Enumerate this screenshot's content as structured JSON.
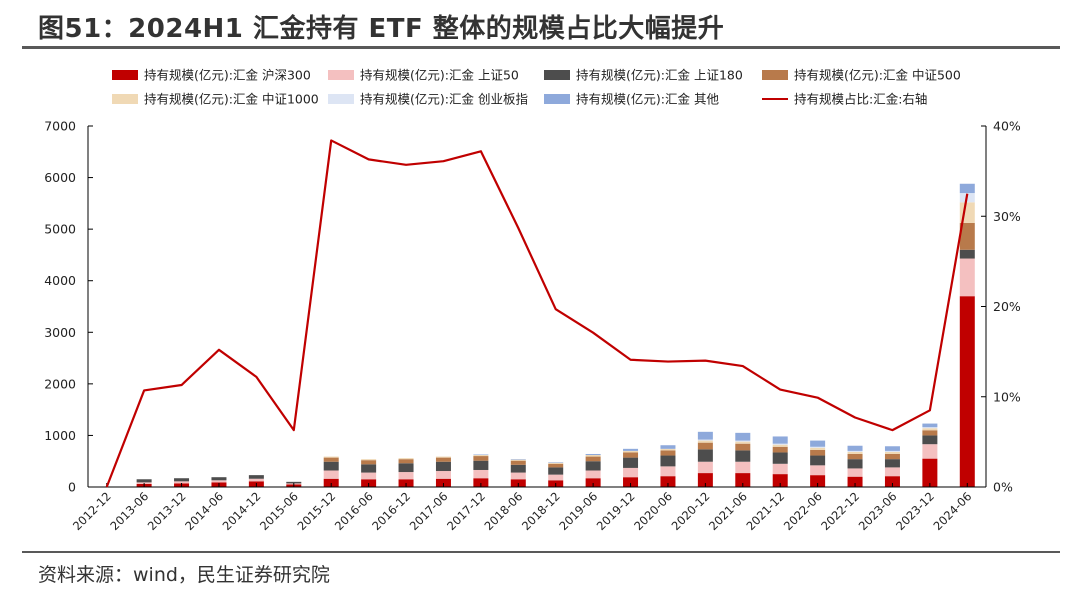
{
  "title": "图51：2024H1 汇金持有 ETF 整体的规模占比大幅提升",
  "source": "资料来源：wind，民生证券研究院",
  "chart_data": {
    "type": "bar",
    "stacked": true,
    "categories": [
      "2012-12",
      "2013-06",
      "2013-12",
      "2014-06",
      "2014-12",
      "2015-06",
      "2015-12",
      "2016-06",
      "2016-12",
      "2017-06",
      "2017-12",
      "2018-06",
      "2018-12",
      "2019-06",
      "2019-12",
      "2020-06",
      "2020-12",
      "2021-06",
      "2021-12",
      "2022-06",
      "2022-12",
      "2023-06",
      "2023-12",
      "2024-06"
    ],
    "series": [
      {
        "name": "持有规模(亿元):汇金 沪深300",
        "color": "#c00000",
        "values": [
          0,
          60,
          70,
          90,
          110,
          50,
          160,
          150,
          150,
          160,
          170,
          150,
          130,
          170,
          190,
          210,
          270,
          270,
          250,
          230,
          200,
          210,
          550,
          3700
        ]
      },
      {
        "name": "持有规模(亿元):汇金 上证50",
        "color": "#f4c0c0",
        "values": [
          0,
          30,
          40,
          40,
          50,
          20,
          160,
          130,
          140,
          150,
          160,
          130,
          110,
          150,
          180,
          190,
          220,
          220,
          200,
          190,
          160,
          170,
          280,
          730
        ]
      },
      {
        "name": "持有规模(亿元):汇金 上证180",
        "color": "#4d4d4d",
        "values": [
          0,
          60,
          60,
          60,
          70,
          30,
          170,
          160,
          170,
          180,
          180,
          150,
          140,
          180,
          200,
          210,
          240,
          220,
          220,
          190,
          180,
          160,
          170,
          170
        ]
      },
      {
        "name": "持有规模(亿元):汇金 中证500",
        "color": "#b87a4b",
        "values": [
          0,
          0,
          0,
          0,
          0,
          0,
          80,
          80,
          80,
          80,
          90,
          80,
          70,
          90,
          100,
          100,
          130,
          130,
          110,
          110,
          100,
          100,
          100,
          520
        ]
      },
      {
        "name": "持有规模(亿元):汇金 中证1000",
        "color": "#f0d9b5",
        "values": [
          0,
          0,
          0,
          0,
          0,
          0,
          20,
          20,
          20,
          20,
          20,
          20,
          20,
          30,
          30,
          30,
          40,
          40,
          40,
          40,
          40,
          40,
          40,
          400
        ]
      },
      {
        "name": "持有规模(亿元):汇金 创业板指",
        "color": "#dde5f4",
        "values": [
          0,
          0,
          0,
          0,
          0,
          0,
          0,
          0,
          0,
          0,
          0,
          0,
          0,
          0,
          0,
          0,
          20,
          20,
          20,
          20,
          20,
          20,
          20,
          180
        ]
      },
      {
        "name": "持有规模(亿元):汇金 其他",
        "color": "#8ea9db",
        "values": [
          0,
          0,
          0,
          0,
          0,
          0,
          0,
          0,
          0,
          0,
          10,
          10,
          10,
          20,
          40,
          70,
          150,
          150,
          140,
          120,
          100,
          90,
          70,
          180
        ]
      }
    ],
    "line_series": {
      "name": "持有规模占比:汇金:右轴",
      "color": "#c00000",
      "axis": "right",
      "values": [
        0,
        10.7,
        11.3,
        15.2,
        12.2,
        6.3,
        38.4,
        36.3,
        35.7,
        36.1,
        37.2,
        28.7,
        19.7,
        17.1,
        14.1,
        13.9,
        14.0,
        13.4,
        10.8,
        9.9,
        7.7,
        6.3,
        8.5,
        32.5
      ]
    },
    "ylim": [
      0,
      7000
    ],
    "yticks": [
      0,
      1000,
      2000,
      3000,
      4000,
      5000,
      6000,
      7000
    ],
    "y2lim": [
      0,
      40
    ],
    "y2ticks": [
      "0%",
      "10%",
      "20%",
      "30%",
      "40%"
    ],
    "xlabel": "",
    "ylabel": "",
    "legend_position": "top",
    "grid": false
  }
}
